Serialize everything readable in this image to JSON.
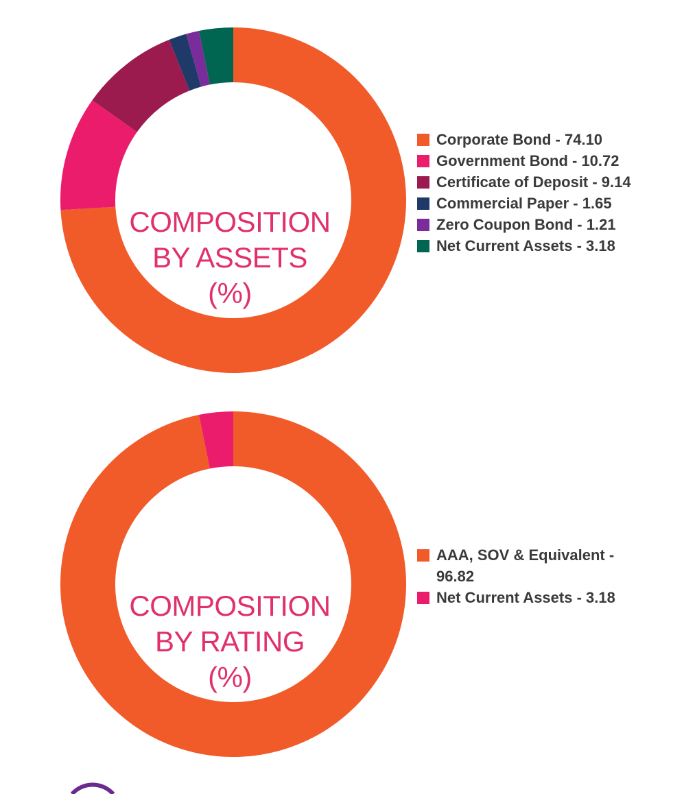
{
  "chart_data": [
    {
      "type": "pie",
      "title": "COMPOSITION BY ASSETS (%)",
      "title_lines": [
        "COMPOSITION",
        "BY ASSETS",
        "(%)"
      ],
      "categories": [
        "Corporate Bond",
        "Government Bond",
        "Certificate of Deposit",
        "Commercial Paper",
        "Zero Coupon Bond",
        "Net Current Assets"
      ],
      "values": [
        74.1,
        10.72,
        9.14,
        1.65,
        1.21,
        3.18
      ],
      "colors": [
        "#f15a29",
        "#ec1c6c",
        "#9b1b4e",
        "#1f3a68",
        "#7a2d9a",
        "#006652"
      ],
      "legend": [
        "Corporate Bond - 74.10",
        "Government Bond - 10.72",
        "Certificate of Deposit - 9.14",
        "Commercial Paper - 1.65",
        "Zero Coupon Bond - 1.21",
        "Net Current Assets - 3.18"
      ],
      "legend_position": "right",
      "chart_style": "donut"
    },
    {
      "type": "pie",
      "title": "COMPOSITION BY RATING (%)",
      "title_lines": [
        "COMPOSITION",
        "BY RATING",
        "(%)"
      ],
      "categories": [
        "AAA, SOV & Equivalent",
        "Net Current Assets"
      ],
      "values": [
        96.82,
        3.18
      ],
      "colors": [
        "#f15a29",
        "#ec1c6c"
      ],
      "legend": [
        "AAA, SOV & Equivalent - 96.82",
        "Net Current Assets - 3.18"
      ],
      "legend_position": "right",
      "chart_style": "donut"
    }
  ],
  "colors": {
    "title_text": "#e0306e",
    "legend_text": "#3a3a3a",
    "decoration_arc": "#6a2a8f"
  }
}
